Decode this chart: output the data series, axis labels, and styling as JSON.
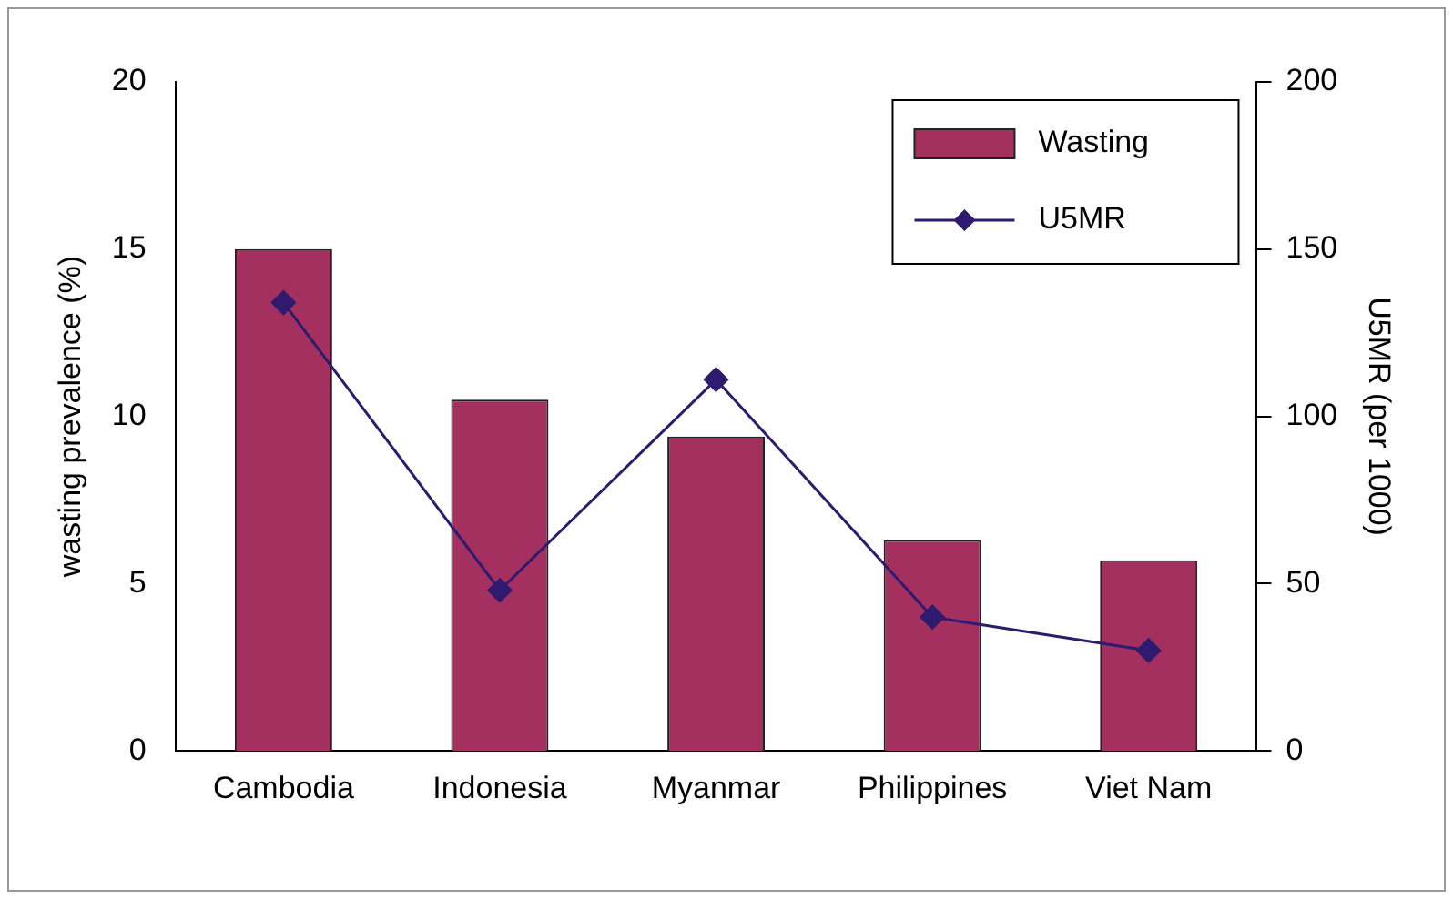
{
  "chart_data": {
    "type": "bar",
    "categories": [
      "Cambodia",
      "Indonesia",
      "Myanmar",
      "Philippines",
      "Viet Nam"
    ],
    "ylabel": "wasting prevalence (%)",
    "y2label": "U5MR (per 1000)",
    "series": [
      {
        "name": "Wasting",
        "color": "#a3305f",
        "values": [
          15.0,
          10.5,
          9.4,
          6.3,
          5.7
        ]
      },
      {
        "name": "U5MR",
        "type": "line",
        "axis": "y2",
        "color": "#2e1a6e",
        "values": [
          134,
          48,
          111,
          40,
          30
        ]
      }
    ],
    "ylim": [
      0,
      20
    ],
    "yticks": [
      0,
      5,
      10,
      15,
      20
    ],
    "y2lim": [
      0,
      200
    ],
    "y2ticks": [
      0,
      50,
      100,
      150,
      200
    ],
    "grid": false,
    "legend": "top right",
    "marker": "diamond",
    "line_style": "solid"
  }
}
